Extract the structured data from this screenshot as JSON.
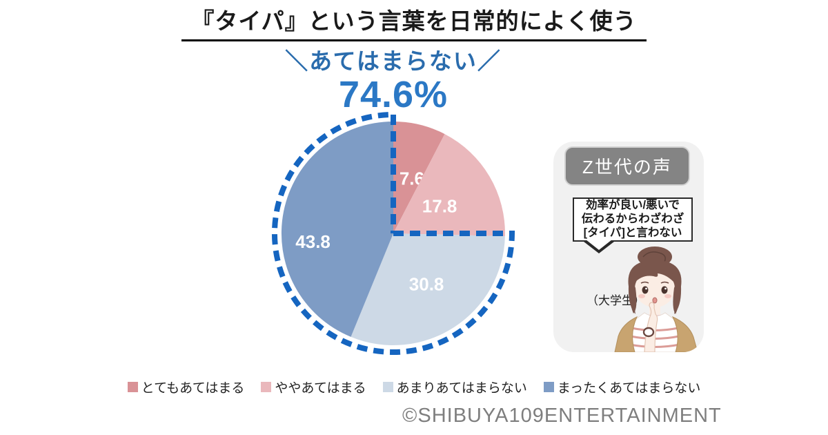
{
  "title": "『タイパ』という言葉を日常的によく使う",
  "callout": {
    "left_slash": "＼",
    "label": "あてはまらない",
    "right_slash": "／",
    "value": "74.6%"
  },
  "chart_data": {
    "type": "pie",
    "title": "『タイパ』という言葉を日常的によく使う",
    "categories": [
      "とてもあてはまる",
      "ややあてはまる",
      "あまりあてはまらない",
      "まったくあてはまらない"
    ],
    "values": [
      7.6,
      17.8,
      30.8,
      43.8
    ],
    "unit": "%",
    "colors": [
      "#D99296",
      "#EAB8BC",
      "#CDD9E6",
      "#7E9CC5"
    ],
    "start_angle_deg": 0,
    "direction": "clockwise",
    "legend_position": "bottom",
    "highlight": {
      "label": "あてはまらない",
      "value": 74.6,
      "covers": [
        "あまりあてはまらない",
        "まったくあてはまらない"
      ],
      "style": "dashed-outline",
      "color": "#1565C0"
    }
  },
  "voice_panel": {
    "header": "Z世代の声",
    "quote_lines": [
      "効率が良い/悪いで",
      "伝わるからわざわざ",
      "[タイパ]と言わない"
    ],
    "attribution": "（大学生）",
    "illustration": "young-woman-thinking"
  },
  "footer": {
    "copyright": "©SHIBUYA109ENTERTAINMENT"
  },
  "palette": {
    "highlight_blue": "#1565C0",
    "callout_label_blue": "#2A6CAD",
    "callout_value_blue": "#2B78C5",
    "title_black": "#1A1A1A",
    "copyright_gray": "#7E7E7E"
  }
}
